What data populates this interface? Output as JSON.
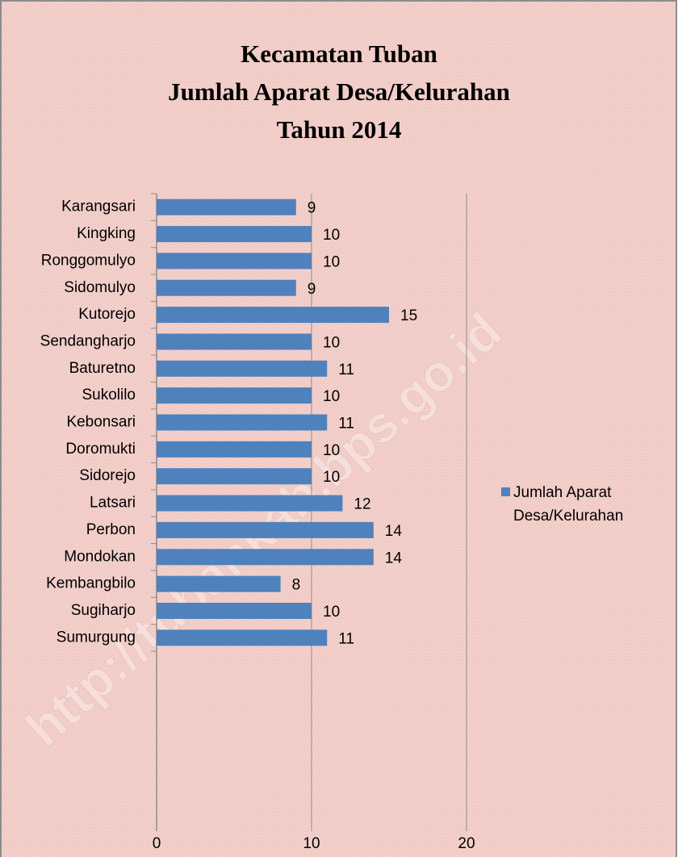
{
  "chart_data": {
    "type": "hbar",
    "title": [
      "Kecamatan Tuban",
      "Jumlah Aparat Desa/Kelurahan",
      "Tahun 2014"
    ],
    "watermark": "http://tubankab.bps.go.id",
    "categories": [
      "Karangsari",
      "Kingking",
      "Ronggomulyo",
      "Sidomulyo",
      "Kutorejo",
      "Sendangharjo",
      "Baturetno",
      "Sukolilo",
      "Kebonsari",
      "Doromukti",
      "Sidorejo",
      "Latsari",
      "Perbon",
      "Mondokan",
      "Kembangbilo",
      "Sugiharjo",
      "Sumurgung"
    ],
    "series": [
      {
        "name": "Jumlah Aparat Desa/Kelurahan",
        "color": "#4f81bd",
        "values": [
          9,
          10,
          10,
          9,
          15,
          10,
          11,
          10,
          11,
          10,
          10,
          12,
          14,
          14,
          8,
          10,
          11
        ]
      }
    ],
    "xlim": [
      0,
      20
    ],
    "xticks": [
      0,
      10,
      20
    ],
    "grid": true,
    "legend": "right"
  }
}
